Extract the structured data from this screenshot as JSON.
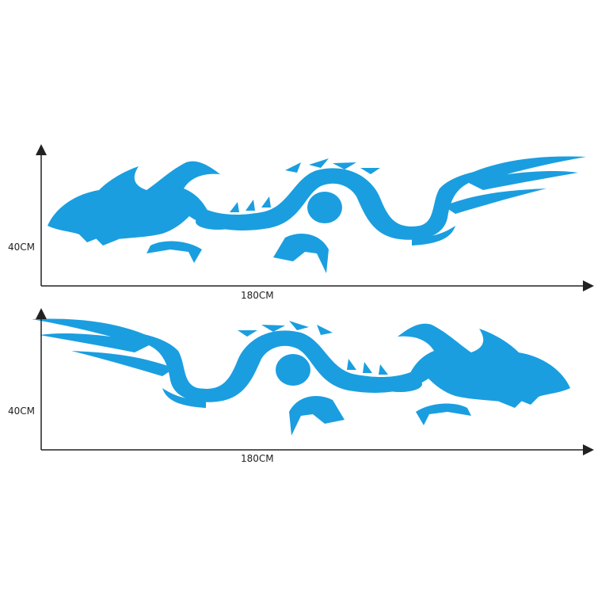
{
  "colors": {
    "decal": "#1a9ee0",
    "axis": "#222222"
  },
  "decals": [
    {
      "orientation": "head-left",
      "height_label": "40CM",
      "width_label": "180CM"
    },
    {
      "orientation": "head-right",
      "height_label": "40CM",
      "width_label": "180CM"
    }
  ]
}
